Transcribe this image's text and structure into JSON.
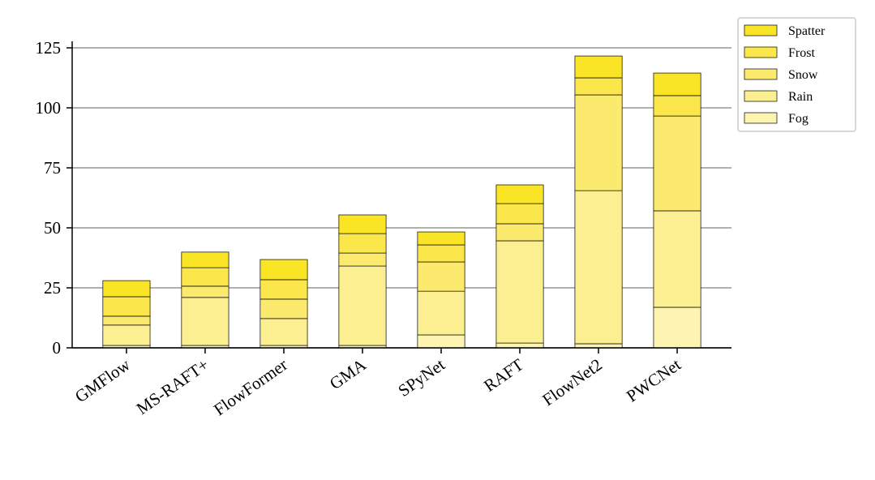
{
  "chart_data": {
    "type": "stacked_bar",
    "categories": [
      "GMFlow",
      "MS-RAFT+",
      "FlowFormer",
      "GMA",
      "SPyNet",
      "RAFT",
      "FlowNet2",
      "PWCNet"
    ],
    "series": [
      {
        "name": "Fog",
        "color": "#fdf4b2",
        "values": [
          1,
          1,
          1,
          1,
          5.4,
          2,
          1.7,
          16.9
        ]
      },
      {
        "name": "Rain",
        "color": "#fcef91",
        "values": [
          8.5,
          20,
          11.2,
          33.1,
          18.2,
          42.6,
          63.8,
          40.2
        ]
      },
      {
        "name": "Snow",
        "color": "#fbea6e",
        "values": [
          3.7,
          4.7,
          8.1,
          5.4,
          12.2,
          7.1,
          39.9,
          39.5
        ]
      },
      {
        "name": "Frost",
        "color": "#fbe64b",
        "values": [
          8.1,
          7.7,
          8.1,
          8.1,
          7.1,
          8.4,
          7.1,
          8.5
        ]
      },
      {
        "name": "Spatter",
        "color": "#fae426",
        "values": [
          6.7,
          6.5,
          8.4,
          7.8,
          5.4,
          7.8,
          9.1,
          9.4
        ]
      }
    ],
    "ylim": [
      0,
      125
    ],
    "yticks": [
      0,
      25,
      50,
      75,
      100,
      125
    ],
    "grid": true,
    "legend": "outside-upper-right"
  }
}
